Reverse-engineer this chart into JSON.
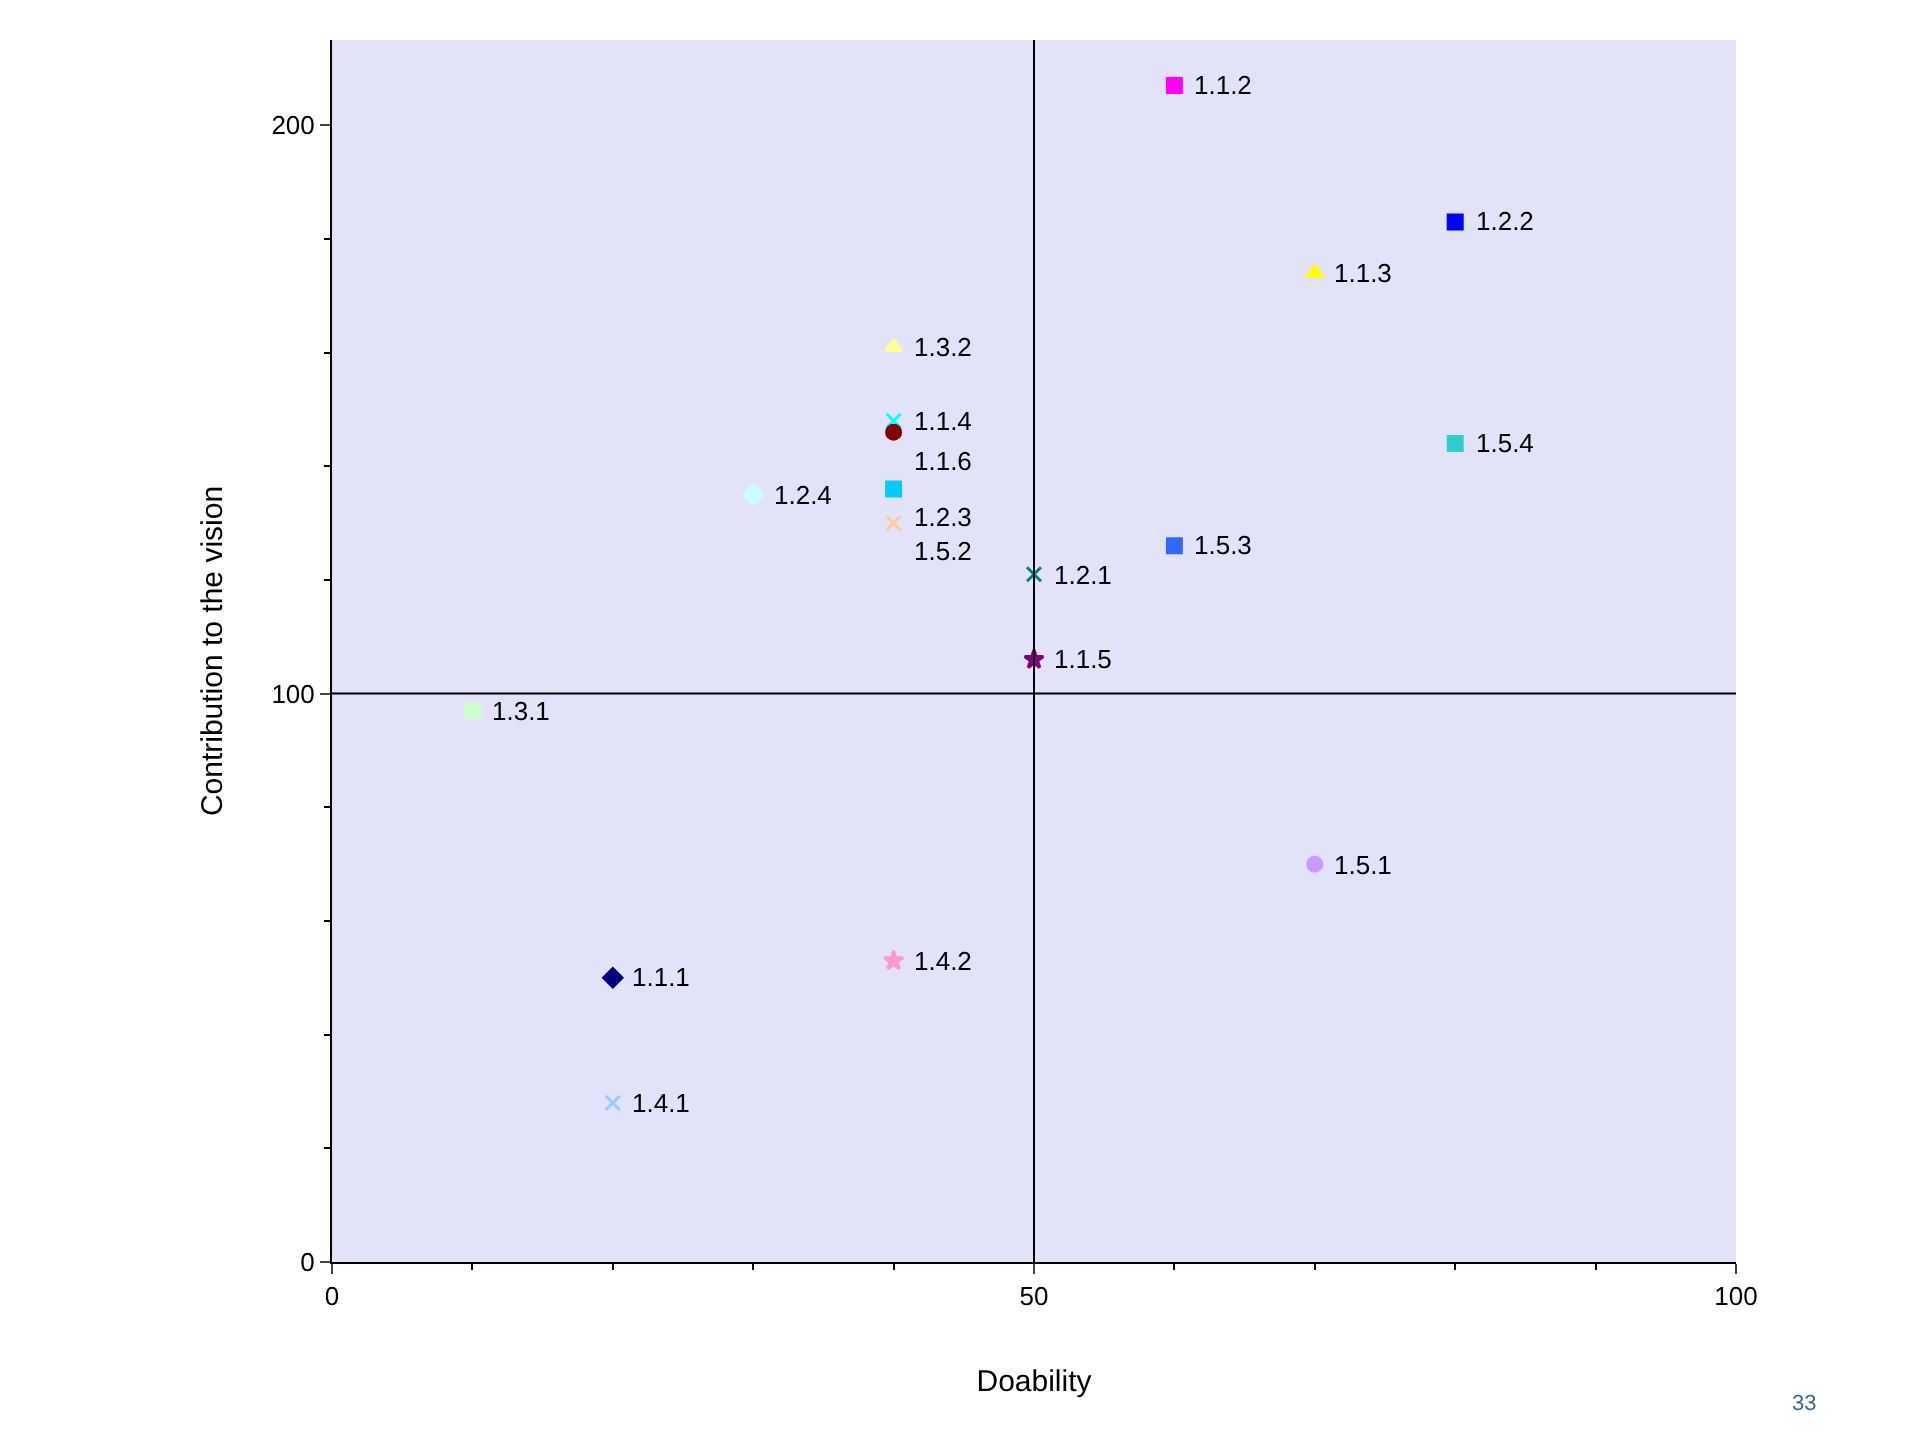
{
  "chart_data": {
    "type": "scatter",
    "xlabel": "Doability",
    "ylabel": "Contribution to the vision",
    "xlim": [
      0,
      100
    ],
    "xticks": [
      0,
      50,
      100
    ],
    "ylim": [
      0,
      215
    ],
    "yticks": [
      0,
      100,
      200
    ],
    "grid": false,
    "legend": false,
    "ref_lines": [
      {
        "axis": "x",
        "value": 50,
        "color": "#000000"
      },
      {
        "axis": "y",
        "value": 100,
        "color": "#000000"
      }
    ],
    "annotations": [
      "33"
    ],
    "series": [
      {
        "name": "1.1.1",
        "color": "#000080",
        "marker": "diamond",
        "x": [
          20
        ],
        "values": [
          50
        ]
      },
      {
        "name": "1.1.2",
        "color": "#ff00ff",
        "marker": "square",
        "x": [
          60
        ],
        "values": [
          207
        ]
      },
      {
        "name": "1.1.3",
        "color": "#ffff00",
        "marker": "triangle",
        "x": [
          70
        ],
        "values": [
          174
        ]
      },
      {
        "name": "1.1.4",
        "color": "#00ffff",
        "marker": "cross",
        "x": [
          40
        ],
        "values": [
          148
        ]
      },
      {
        "name": "1.1.5",
        "color": "#800080",
        "marker": "star",
        "x": [
          50
        ],
        "values": [
          106
        ]
      },
      {
        "name": "1.1.6",
        "color": "#800000",
        "marker": "circle",
        "x": [
          40
        ],
        "values": [
          146
        ]
      },
      {
        "name": "1.2.1",
        "color": "#008080",
        "marker": "cross",
        "x": [
          50
        ],
        "values": [
          121
        ]
      },
      {
        "name": "1.2.2",
        "color": "#0000ff",
        "marker": "square",
        "x": [
          80
        ],
        "values": [
          183
        ]
      },
      {
        "name": "1.2.3",
        "color": "#00ccff",
        "marker": "square",
        "x": [
          40
        ],
        "values": [
          136
        ]
      },
      {
        "name": "1.2.4",
        "color": "#ccffff",
        "marker": "diamond",
        "x": [
          30
        ],
        "values": [
          135
        ]
      },
      {
        "name": "1.3.1",
        "color": "#ccffcc",
        "marker": "square",
        "x": [
          10
        ],
        "values": [
          97
        ]
      },
      {
        "name": "1.3.2",
        "color": "#ffff99",
        "marker": "triangle",
        "x": [
          40
        ],
        "values": [
          161
        ]
      },
      {
        "name": "1.4.1",
        "color": "#99ccff",
        "marker": "cross",
        "x": [
          20
        ],
        "values": [
          28
        ]
      },
      {
        "name": "1.4.2",
        "color": "#ff99cc",
        "marker": "star",
        "x": [
          40
        ],
        "values": [
          53
        ]
      },
      {
        "name": "1.5.1",
        "color": "#cc99ff",
        "marker": "circle",
        "x": [
          70
        ],
        "values": [
          70
        ]
      },
      {
        "name": "1.5.2",
        "color": "#ffcc99",
        "marker": "cross",
        "x": [
          40
        ],
        "values": [
          130
        ]
      },
      {
        "name": "1.5.3",
        "color": "#3366ff",
        "marker": "square",
        "x": [
          60
        ],
        "values": [
          126
        ]
      },
      {
        "name": "1.5.4",
        "color": "#33cccc",
        "marker": "square",
        "x": [
          80
        ],
        "values": [
          144
        ]
      }
    ]
  }
}
